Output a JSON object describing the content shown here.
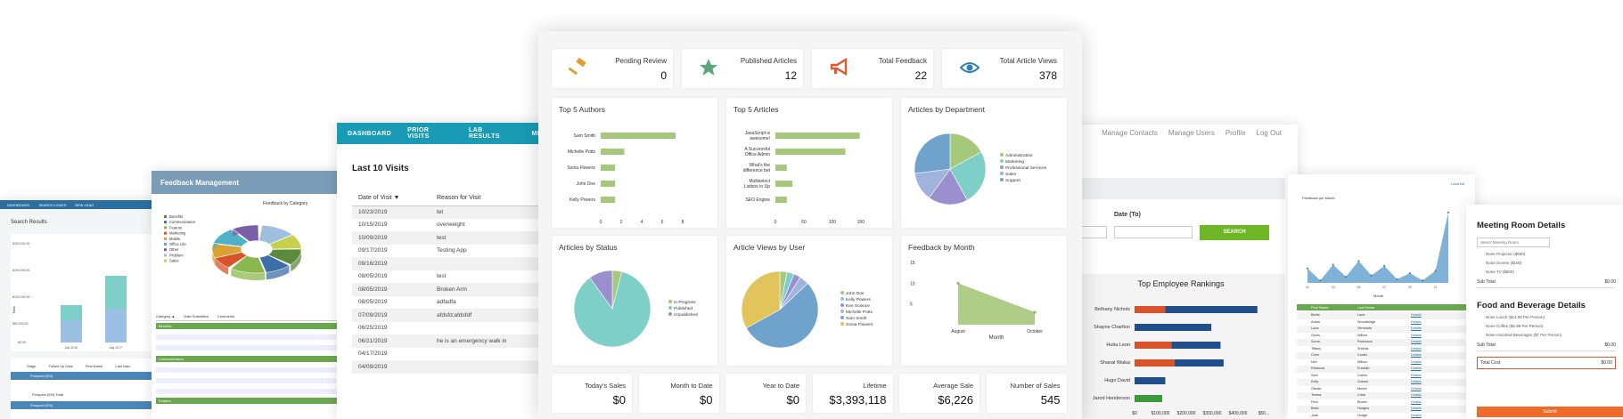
{
  "search_screen": {
    "nav": [
      "DASHBOARD",
      "SEARCH LEADS",
      "NEW LEAD"
    ],
    "title": "Search Results",
    "y_ticks": [
      "$200,000.00",
      "$150,000.00",
      "$100,000.00",
      "$50,000.00",
      "$0.00"
    ],
    "y_label": "Total",
    "x_labels": [
      "July 2016",
      "July 2017"
    ],
    "table_cols": [
      "Stage",
      "Follow Up Date",
      "First Name",
      "Last Nam"
    ],
    "rows": [
      "Prospect (5%)",
      "Prospect (5%) Total",
      "Prospect (5%)"
    ]
  },
  "feedback_screen": {
    "title": "Feedback Management",
    "chart_title": "Feedback by Category",
    "legend": [
      "Benefits",
      "Communication",
      "Feature",
      "Marketing",
      "Mobile",
      "Office Life",
      "Other",
      "Problem",
      "Sales"
    ],
    "table_cols": [
      "Category ▲",
      "Date Submitted",
      "Comments"
    ],
    "groups": [
      "Benefits",
      "Communication",
      "Feature"
    ]
  },
  "visits_screen": {
    "nav": [
      "DASHBOARD",
      "PRIOR VISITS",
      "LAB RESULTS",
      "MESS"
    ],
    "title": "Last 10 Visits",
    "col_date": "Date of Visit ▼",
    "col_reason": "Reason for Visit",
    "rows": [
      {
        "date": "10/23/2019",
        "reason": "tet"
      },
      {
        "date": "10/15/2019",
        "reason": "overweight"
      },
      {
        "date": "10/09/2019",
        "reason": "test"
      },
      {
        "date": "09/17/2019",
        "reason": "Testing App"
      },
      {
        "date": "09/16/2019",
        "reason": ""
      },
      {
        "date": "08/05/2019",
        "reason": "test"
      },
      {
        "date": "08/05/2019",
        "reason": "Broken Arm"
      },
      {
        "date": "08/05/2019",
        "reason": "adfadfa"
      },
      {
        "date": "07/09/2019",
        "reason": "afdsfd;afdsfdf"
      },
      {
        "date": "06/25/2019",
        "reason": ""
      },
      {
        "date": "06/21/2019",
        "reason": "he is an emergency walk in"
      },
      {
        "date": "04/17/2019",
        "reason": ""
      },
      {
        "date": "04/09/2019",
        "reason": ""
      }
    ]
  },
  "contacts_screen": {
    "top_links": [
      "Manage Contacts",
      "Manage Users",
      "Profile",
      "Log Out"
    ],
    "date_to_label": "Date (To)",
    "search_button": "SEARCH",
    "rankings_title": "Top Employee Rankings",
    "employees": [
      "Bethany Nichols",
      "Shayne Charlton",
      "Hutia Leon",
      "Shanai Walsa",
      "Hugo David",
      "Jarod Henderson"
    ],
    "x_ticks": [
      "$0",
      "$100,000",
      "$200,000",
      "$300,000",
      "$400,000",
      "$50..."
    ]
  },
  "fbm_screen": {
    "link": "Lead list",
    "title": "Feedback per Month",
    "x_label": "Month",
    "table_cols": [
      "First Name",
      "Last Name"
    ],
    "first_names": [
      "Bertie",
      "Adam",
      "Luna",
      "Gyms",
      "Sonia",
      "Tiffany",
      "Chris",
      "Neil",
      "Rebecca",
      "Sam",
      "Kelly",
      "Gerald",
      "Teresa",
      "Paul",
      "Bella",
      "Joan"
    ],
    "last_names": [
      "Lane",
      "Woodbridge",
      "Vermonte",
      "Willow",
      "Parkinson",
      "Shields",
      "Cordiz",
      "Wilson",
      "Franklin",
      "Carlos",
      "Graves",
      "Moore",
      "Clark",
      "Brown",
      "Hodges",
      "Hodge"
    ],
    "action": "Details"
  },
  "meeting_screen": {
    "title": "Meeting Room Details",
    "select_placeholder": "Select Meeting Room",
    "options": [
      "None  Projector ($500)",
      "None  Screen ($100)",
      "None  TV ($500)"
    ],
    "subtotal_label": "Sub Total",
    "subtotal_value": "$0.00",
    "food_title": "Food and Beverage Details",
    "food_options": [
      "None  Lunch ($14.99 Per Person)",
      "None  Coffee ($4.99 Per Person)",
      "None  Assorted Beverages ($7 Per Person)"
    ],
    "food_subtotal_label": "Sub Total",
    "food_subtotal_value": "$0.00",
    "total_label": "Total Cost",
    "total_value": "$0.00",
    "submit": "Submit"
  },
  "main": {
    "kpis": [
      {
        "label": "Pending Review",
        "value": "0",
        "icon": "gavel-icon",
        "color": "#d9a232"
      },
      {
        "label": "Published Articles",
        "value": "12",
        "icon": "star-icon",
        "color": "#5aa87a"
      },
      {
        "label": "Total Feedback",
        "value": "22",
        "icon": "megaphone-icon",
        "color": "#e05a2b"
      },
      {
        "label": "Total Article Views",
        "value": "378",
        "icon": "eye-icon",
        "color": "#2f7fb5"
      }
    ],
    "stats": [
      {
        "label": "Today's Sales",
        "value": "$0"
      },
      {
        "label": "Month to Date",
        "value": "$0"
      },
      {
        "label": "Year to Date",
        "value": "$0"
      },
      {
        "label": "Lifetime",
        "value": "$3,393,118"
      },
      {
        "label": "Average Sale",
        "value": "$6,226"
      },
      {
        "label": "Number of Sales",
        "value": "545"
      }
    ]
  },
  "chart_data": [
    {
      "type": "bar",
      "title": "Top 5 Authors",
      "orientation": "horizontal",
      "categories": [
        "Sam Smith",
        "Michelle Potts",
        "Sonia Flowers",
        "John Doe",
        "Kelly Powers"
      ],
      "values": [
        7.3,
        2.3,
        1.4,
        1.4,
        1.4
      ],
      "xlabel": "Total",
      "xlim": [
        0,
        10
      ],
      "x_ticks": [
        "0",
        "2",
        "4",
        "6",
        "8"
      ],
      "color": "#a5c87a"
    },
    {
      "type": "bar",
      "title": "Top 5 Articles",
      "orientation": "horizontal",
      "categories": [
        "JavaScript is awesome!",
        "A Successful Office Admin",
        "What's the difference bet",
        "Multiselect Listbox In Up",
        "SEO Engine"
      ],
      "values": [
        148,
        123,
        20,
        30,
        20
      ],
      "xlabel": "Total",
      "xlim": [
        0,
        180
      ],
      "x_ticks": [
        "0",
        "50",
        "100",
        "150"
      ],
      "color": "#a5c87a"
    },
    {
      "type": "pie",
      "title": "Articles by Department",
      "labels": [
        "Administration",
        "Marketing",
        "Professional Services",
        "Sales",
        "Support"
      ],
      "values": [
        17,
        25,
        18,
        13,
        27
      ],
      "colors": [
        "#a5c87a",
        "#7ecfc8",
        "#9b8fcf",
        "#9fb3dc",
        "#6fa3cc"
      ]
    },
    {
      "type": "pie",
      "title": "Articles by Status",
      "labels": [
        "In Progress",
        "Published",
        "Unpublished"
      ],
      "values": [
        4,
        86,
        10
      ],
      "colors": [
        "#a5c87a",
        "#7ecfc8",
        "#9b8fcf"
      ]
    },
    {
      "type": "pie",
      "title": "Article Views by User",
      "labels": [
        "John Doe",
        "Kelly Powers",
        "Ken Science",
        "Michelle Potts",
        "Sam Smith",
        "Sonia Flowers"
      ],
      "values": [
        3,
        3,
        3,
        4,
        54,
        33
      ],
      "colors": [
        "#a5c87a",
        "#7ecfc8",
        "#9b8fcf",
        "#9fb3dc",
        "#6fa3cc",
        "#e1c55c"
      ]
    },
    {
      "type": "area",
      "title": "Feedback by Month",
      "categories": [
        "August",
        "October"
      ],
      "values": [
        10,
        3
      ],
      "xlabel": "Month",
      "ylim": [
        0,
        15
      ],
      "y_ticks": [
        "15",
        "10",
        "5"
      ],
      "color": "#a5c87a"
    },
    {
      "type": "bar",
      "title": "",
      "series_x": [
        "July 2016",
        "July 2017"
      ],
      "series": [
        {
          "values": [
            50000,
            75000
          ]
        },
        {
          "values": [
            30000,
            60000
          ]
        }
      ],
      "ylim": [
        0,
        200000
      ]
    },
    {
      "type": "pie",
      "title": "Feedback by Category",
      "labels": [
        "Benefits",
        "Communication",
        "Feature",
        "Marketing",
        "Mobile",
        "Office Life",
        "Other",
        "Problem",
        "Sales"
      ],
      "values": [
        12,
        10,
        14,
        8,
        10,
        12,
        11,
        13,
        10
      ],
      "colors": [
        "#5b8a3c",
        "#3c6ea8",
        "#8bb84e",
        "#d9532a",
        "#d9a232",
        "#4fb1c8",
        "#7b5ea7",
        "#9fbfe0",
        "#c8d04a"
      ]
    },
    {
      "type": "bar",
      "title": "Top Employee Rankings",
      "orientation": "horizontal",
      "categories": [
        "Bethany Nichols",
        "Shayne Charlton",
        "Hutia Leon",
        "Shanai Walsa",
        "Hugo David",
        "Jarod Henderson"
      ],
      "series": [
        {
          "values": [
            100000,
            0,
            120000,
            130000,
            0,
            0
          ],
          "color": "#d9532a"
        },
        {
          "values": [
            0,
            0,
            0,
            0,
            0,
            90000
          ],
          "color": "#3b9a3b"
        },
        {
          "values": [
            300000,
            250000,
            160000,
            160000,
            100000,
            0
          ],
          "color": "#1f4e8a"
        }
      ],
      "xlim": [
        0,
        450000
      ]
    },
    {
      "type": "area",
      "title": "Feedback per Month",
      "xlabel": "Month",
      "categories": [
        "01",
        "02",
        "03",
        "04",
        "05",
        "06",
        "07",
        "08",
        "09",
        "10",
        "11",
        "12"
      ],
      "values": [
        12,
        2,
        15,
        5,
        18,
        6,
        14,
        3,
        8,
        2,
        10,
        58
      ],
      "ylim": [
        0,
        60
      ]
    }
  ]
}
